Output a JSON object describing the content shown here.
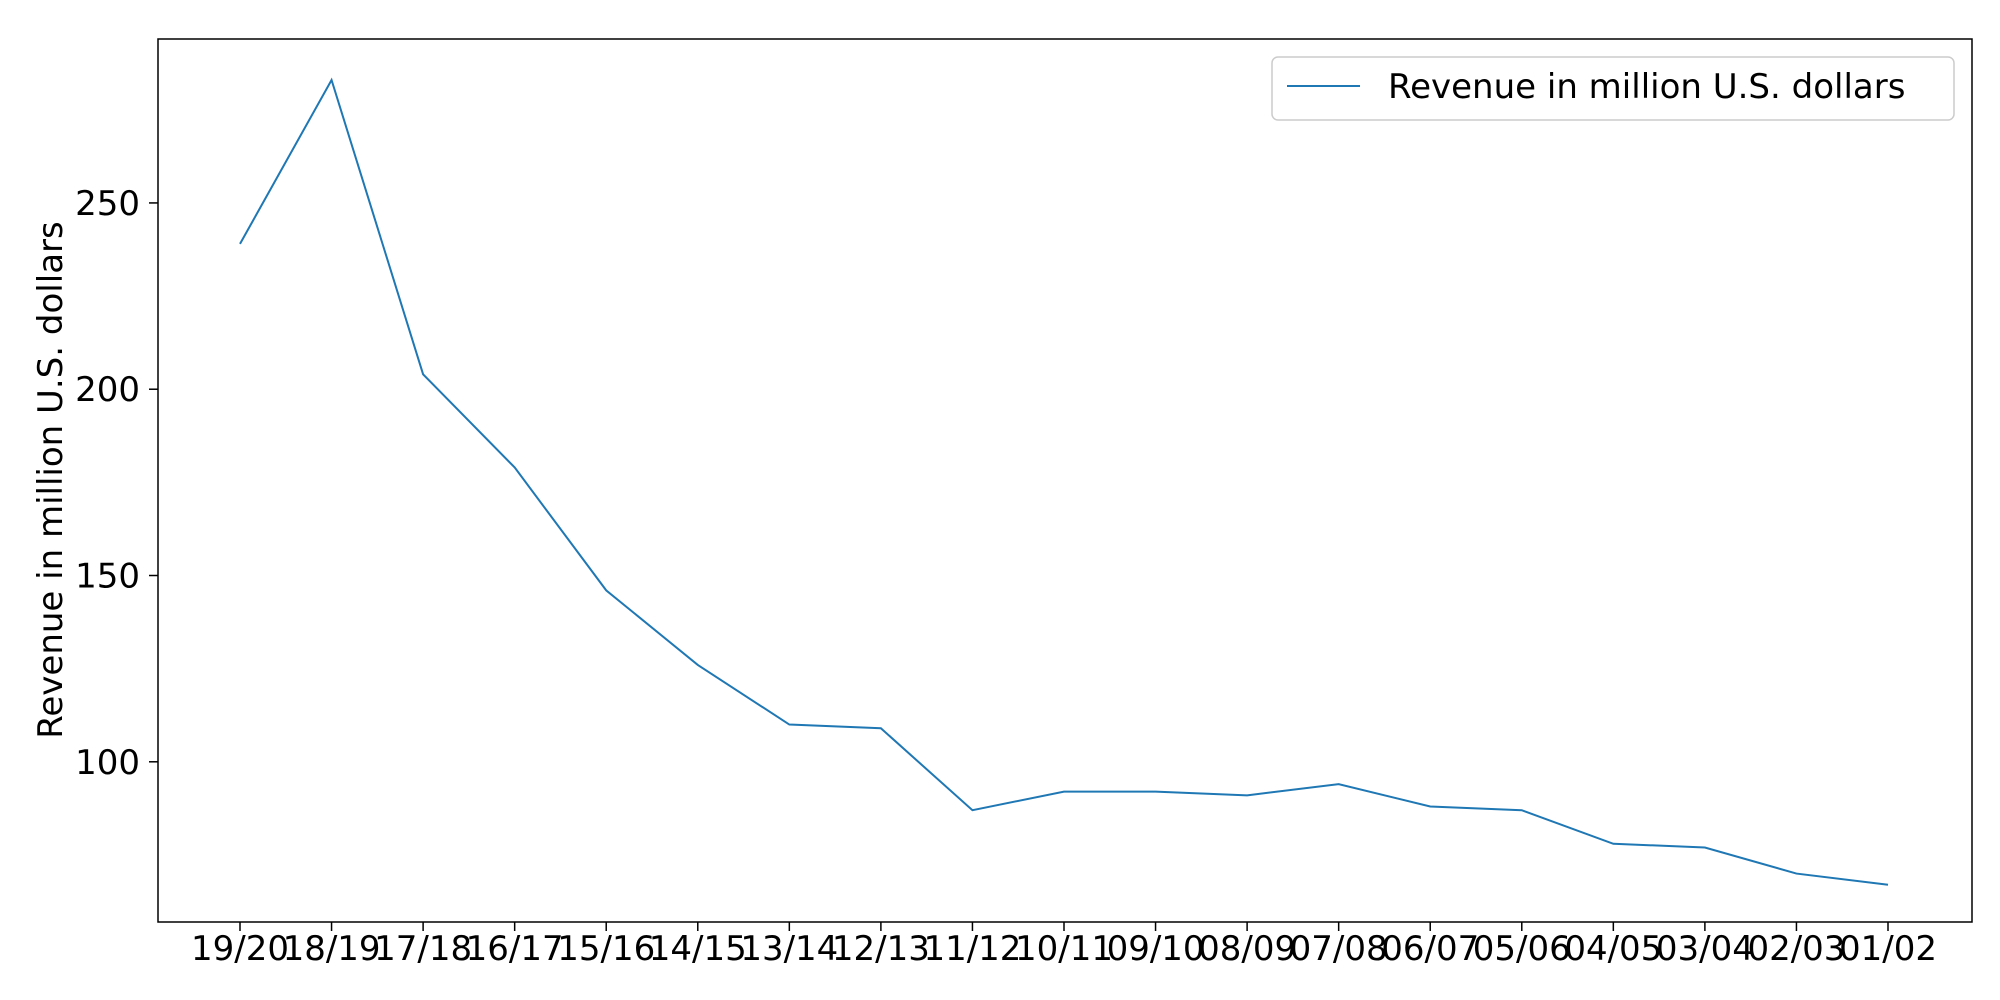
{
  "chart_data": {
    "type": "line",
    "xlabel": "",
    "ylabel": "Revenue in million U.S. dollars",
    "categories": [
      "19/20",
      "18/19",
      "17/18",
      "16/17",
      "15/16",
      "14/15",
      "13/14",
      "12/13",
      "11/12",
      "10/11",
      "09/10",
      "08/09",
      "07/08",
      "06/07",
      "05/06",
      "04/05",
      "03/04",
      "02/03",
      "01/02"
    ],
    "series": [
      {
        "name": "Revenue in million U.S. dollars",
        "color": "#1f77b4",
        "values": [
          239,
          283,
          204,
          179,
          146,
          126,
          110,
          109,
          87,
          92,
          92,
          91,
          94,
          88,
          87,
          78,
          77,
          70,
          67
        ]
      }
    ],
    "yticks": [
      100,
      150,
      200,
      250
    ],
    "ylim": [
      57,
      294
    ],
    "legend": "top-right",
    "grid": false
  }
}
